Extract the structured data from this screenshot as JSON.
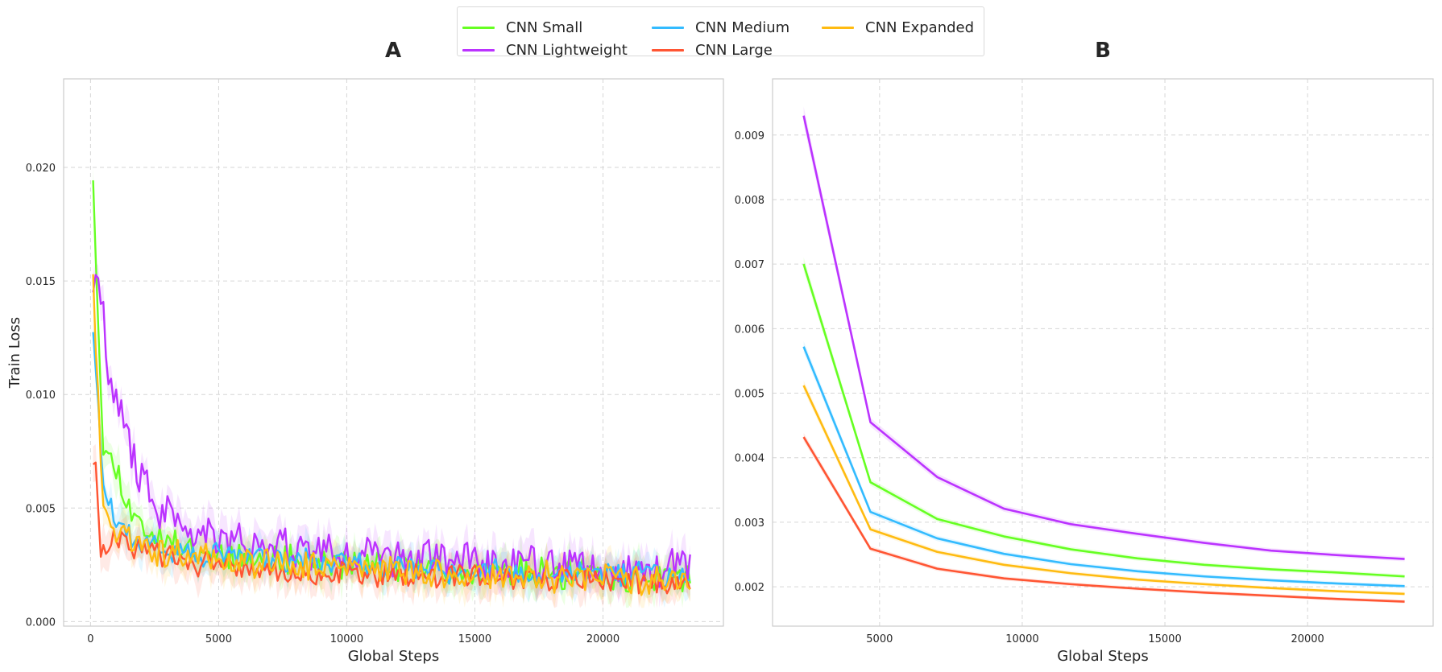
{
  "legend": {
    "items": [
      {
        "name": "CNN Small",
        "color": "#66ff22"
      },
      {
        "name": "CNN Lightweight",
        "color": "#bb33ff"
      },
      {
        "name": "CNN Medium",
        "color": "#33bbff"
      },
      {
        "name": "CNN Large",
        "color": "#ff5533"
      },
      {
        "name": "CNN Expanded",
        "color": "#ffbb11"
      }
    ]
  },
  "chart_data": [
    {
      "type": "line",
      "title": "A",
      "xlabel": "Global Steps",
      "ylabel": "Train Loss",
      "xlim": [
        -1050,
        24700
      ],
      "ylim": [
        -0.0002,
        0.0239
      ],
      "xticks": [
        "0",
        "5000",
        "10000",
        "15000",
        "20000"
      ],
      "xtick_values": [
        0,
        5000,
        10000,
        15000,
        20000
      ],
      "yticks": [
        "0.000",
        "0.005",
        "0.010",
        "0.015",
        "0.020"
      ],
      "ytick_values": [
        0,
        0.005,
        0.01,
        0.015,
        0.02
      ],
      "grid": true,
      "x_range": [
        100,
        23400
      ],
      "series": [
        {
          "name": "CNN Small",
          "color": "#66ff22",
          "x": [
            100,
            500,
            1000,
            1500,
            2000,
            3000,
            5000,
            8000,
            12000,
            16000,
            20000,
            23400
          ],
          "y": [
            0.0197,
            0.0075,
            0.0068,
            0.005,
            0.0042,
            0.0035,
            0.003,
            0.0027,
            0.0024,
            0.0022,
            0.002,
            0.0019
          ],
          "noise": 0.0006
        },
        {
          "name": "CNN Lightweight",
          "color": "#bb33ff",
          "x": [
            100,
            400,
            800,
            1200,
            1700,
            2500,
            4000,
            7000,
            10000,
            15000,
            20000,
            23400
          ],
          "y": [
            0.015,
            0.0145,
            0.01,
            0.009,
            0.007,
            0.005,
            0.004,
            0.0033,
            0.003,
            0.0026,
            0.0024,
            0.0023
          ],
          "noise": 0.0008
        },
        {
          "name": "CNN Medium",
          "color": "#33bbff",
          "x": [
            100,
            500,
            1000,
            2000,
            4000,
            8000,
            12000,
            16000,
            20000,
            23400
          ],
          "y": [
            0.013,
            0.006,
            0.004,
            0.0035,
            0.003,
            0.0027,
            0.0024,
            0.0022,
            0.0021,
            0.002
          ],
          "noise": 0.0005
        },
        {
          "name": "CNN Large",
          "color": "#ff5533",
          "x": [
            100,
            250,
            400,
            1000,
            2000,
            4000,
            8000,
            12000,
            16000,
            20000,
            23400
          ],
          "y": [
            0.0072,
            0.0065,
            0.003,
            0.0038,
            0.0032,
            0.0026,
            0.0022,
            0.002,
            0.0019,
            0.0018,
            0.0017
          ],
          "noise": 0.0005
        },
        {
          "name": "CNN Expanded",
          "color": "#ffbb11",
          "x": [
            100,
            200,
            500,
            1000,
            2000,
            4000,
            8000,
            12000,
            16000,
            20000,
            23400
          ],
          "y": [
            0.0155,
            0.012,
            0.005,
            0.004,
            0.0032,
            0.0028,
            0.0025,
            0.0022,
            0.002,
            0.0019,
            0.0018
          ],
          "noise": 0.0006
        }
      ]
    },
    {
      "type": "line",
      "title": "B",
      "xlabel": "Global Steps",
      "ylabel": "",
      "xlim": [
        1250,
        24400
      ],
      "ylim": [
        0.00139,
        0.00987
      ],
      "xticks": [
        "5000",
        "10000",
        "15000",
        "20000"
      ],
      "xtick_values": [
        5000,
        10000,
        15000,
        20000
      ],
      "yticks": [
        "0.002",
        "0.003",
        "0.004",
        "0.005",
        "0.006",
        "0.007",
        "0.008",
        "0.009"
      ],
      "ytick_values": [
        0.002,
        0.003,
        0.004,
        0.005,
        0.006,
        0.007,
        0.008,
        0.009
      ],
      "grid": true,
      "x": [
        2340,
        4680,
        7020,
        9360,
        11700,
        14040,
        16380,
        18720,
        21060,
        23400
      ],
      "series": [
        {
          "name": "CNN Small",
          "color": "#66ff22",
          "y": [
            0.007,
            0.00362,
            0.00305,
            0.00278,
            0.00258,
            0.00244,
            0.00234,
            0.00227,
            0.00222,
            0.00216
          ]
        },
        {
          "name": "CNN Lightweight",
          "color": "#bb33ff",
          "y": [
            0.0093,
            0.00455,
            0.0037,
            0.00321,
            0.00297,
            0.00282,
            0.00268,
            0.00256,
            0.00249,
            0.00243
          ]
        },
        {
          "name": "CNN Medium",
          "color": "#33bbff",
          "y": [
            0.00572,
            0.00316,
            0.00275,
            0.00251,
            0.00235,
            0.00224,
            0.00216,
            0.0021,
            0.00205,
            0.00201
          ]
        },
        {
          "name": "CNN Large",
          "color": "#ff5533",
          "y": [
            0.00432,
            0.00259,
            0.00228,
            0.00213,
            0.00204,
            0.00197,
            0.00191,
            0.00186,
            0.00181,
            0.00177
          ]
        },
        {
          "name": "CNN Expanded",
          "color": "#ffbb11",
          "y": [
            0.00512,
            0.00289,
            0.00254,
            0.00234,
            0.00221,
            0.00211,
            0.00204,
            0.00198,
            0.00193,
            0.00189
          ]
        }
      ]
    }
  ]
}
